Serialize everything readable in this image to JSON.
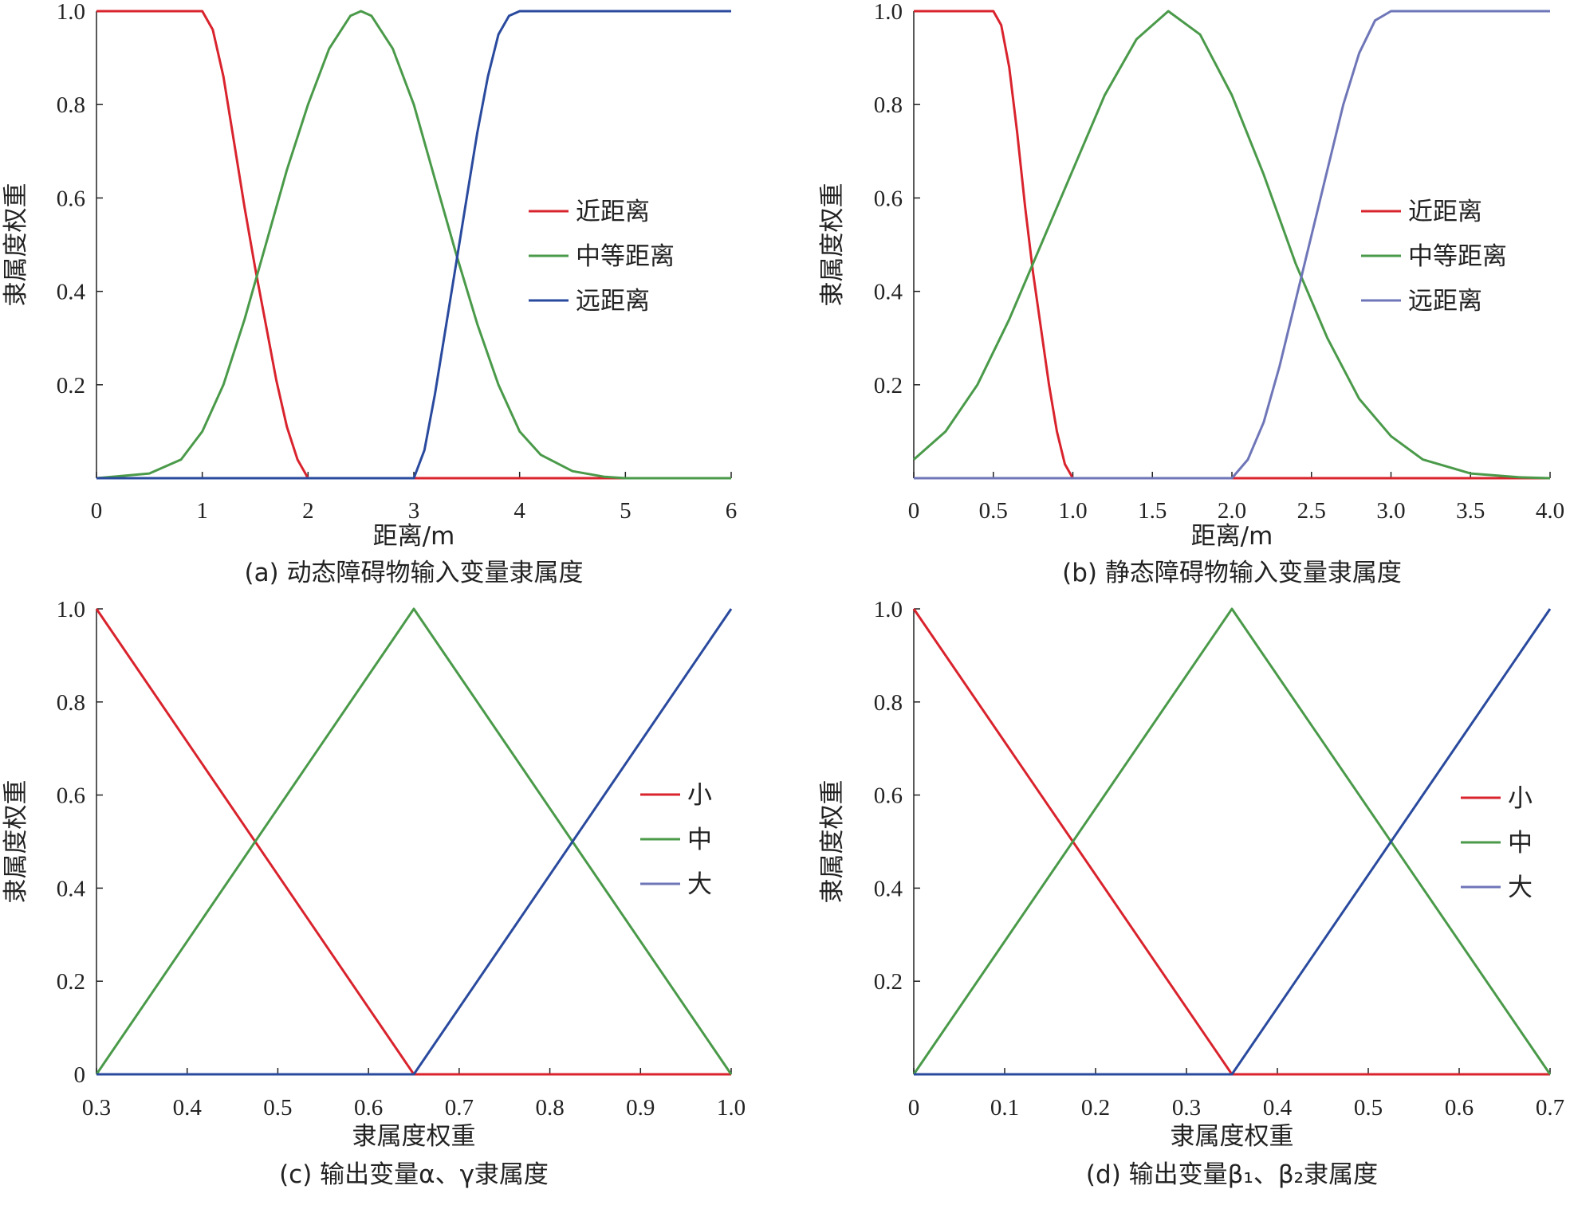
{
  "chart_data": [
    {
      "type": "line",
      "id": "a",
      "caption": "(a) 动态障碍物输入变量隶属度",
      "xlabel": "距离/m",
      "ylabel": "隶属度权重",
      "xlim": [
        0,
        6
      ],
      "ylim": [
        0,
        1
      ],
      "x_ticks": [
        "0",
        "1",
        "2",
        "3",
        "4",
        "5",
        "6"
      ],
      "x_tick_values": [
        0,
        1,
        2,
        3,
        4,
        5,
        6
      ],
      "y_ticks": [
        "0.2",
        "0.4",
        "0.6",
        "0.8",
        "1.0"
      ],
      "y_tick_values": [
        0.2,
        0.4,
        0.6,
        0.8,
        1.0
      ],
      "legend_position": "right",
      "series": [
        {
          "name": "近距离",
          "color": "#d9232d",
          "points": [
            [
              0,
              1
            ],
            [
              1.0,
              1
            ],
            [
              1.1,
              0.96
            ],
            [
              1.2,
              0.86
            ],
            [
              1.3,
              0.72
            ],
            [
              1.4,
              0.58
            ],
            [
              1.5,
              0.45
            ],
            [
              1.6,
              0.33
            ],
            [
              1.7,
              0.21
            ],
            [
              1.8,
              0.11
            ],
            [
              1.9,
              0.04
            ],
            [
              2.0,
              0
            ],
            [
              6,
              0
            ]
          ]
        },
        {
          "name": "中等距离",
          "color": "#4a9a4a",
          "points": [
            [
              0,
              0
            ],
            [
              0.5,
              0.01
            ],
            [
              0.8,
              0.04
            ],
            [
              1.0,
              0.1
            ],
            [
              1.2,
              0.2
            ],
            [
              1.4,
              0.34
            ],
            [
              1.6,
              0.5
            ],
            [
              1.8,
              0.66
            ],
            [
              2.0,
              0.8
            ],
            [
              2.2,
              0.92
            ],
            [
              2.4,
              0.99
            ],
            [
              2.5,
              1.0
            ],
            [
              2.6,
              0.99
            ],
            [
              2.8,
              0.92
            ],
            [
              3.0,
              0.8
            ],
            [
              3.2,
              0.64
            ],
            [
              3.4,
              0.48
            ],
            [
              3.6,
              0.33
            ],
            [
              3.8,
              0.2
            ],
            [
              4.0,
              0.1
            ],
            [
              4.2,
              0.05
            ],
            [
              4.5,
              0.015
            ],
            [
              4.8,
              0.003
            ],
            [
              5.0,
              0
            ],
            [
              6,
              0
            ]
          ]
        },
        {
          "name": "远距离",
          "color": "#2a4a9e",
          "points": [
            [
              0,
              0
            ],
            [
              3.0,
              0
            ],
            [
              3.1,
              0.06
            ],
            [
              3.2,
              0.18
            ],
            [
              3.3,
              0.32
            ],
            [
              3.4,
              0.46
            ],
            [
              3.5,
              0.6
            ],
            [
              3.6,
              0.74
            ],
            [
              3.7,
              0.86
            ],
            [
              3.8,
              0.95
            ],
            [
              3.9,
              0.99
            ],
            [
              4.0,
              1
            ],
            [
              6,
              1
            ]
          ]
        }
      ]
    },
    {
      "type": "line",
      "id": "b",
      "caption": "(b) 静态障碍物输入变量隶属度",
      "xlabel": "距离/m",
      "ylabel": "隶属度权重",
      "xlim": [
        0,
        4
      ],
      "ylim": [
        0,
        1
      ],
      "x_ticks": [
        "0",
        "0.5",
        "1.0",
        "1.5",
        "2.0",
        "2.5",
        "3.0",
        "3.5",
        "4.0"
      ],
      "x_tick_values": [
        0,
        0.5,
        1.0,
        1.5,
        2.0,
        2.5,
        3.0,
        3.5,
        4.0
      ],
      "y_ticks": [
        "0.2",
        "0.4",
        "0.6",
        "0.8",
        "1.0"
      ],
      "y_tick_values": [
        0.2,
        0.4,
        0.6,
        0.8,
        1.0
      ],
      "legend_position": "right",
      "series": [
        {
          "name": "近距离",
          "color": "#d9232d",
          "points": [
            [
              0,
              1
            ],
            [
              0.5,
              1
            ],
            [
              0.55,
              0.97
            ],
            [
              0.6,
              0.88
            ],
            [
              0.65,
              0.74
            ],
            [
              0.7,
              0.58
            ],
            [
              0.75,
              0.44
            ],
            [
              0.8,
              0.32
            ],
            [
              0.85,
              0.2
            ],
            [
              0.9,
              0.1
            ],
            [
              0.95,
              0.03
            ],
            [
              1.0,
              0
            ],
            [
              4,
              0
            ]
          ]
        },
        {
          "name": "中等距离",
          "color": "#4a9a4a",
          "points": [
            [
              0,
              0.04
            ],
            [
              0.2,
              0.1
            ],
            [
              0.4,
              0.2
            ],
            [
              0.6,
              0.34
            ],
            [
              0.8,
              0.5
            ],
            [
              1.0,
              0.66
            ],
            [
              1.2,
              0.82
            ],
            [
              1.4,
              0.94
            ],
            [
              1.6,
              1.0
            ],
            [
              1.8,
              0.95
            ],
            [
              2.0,
              0.82
            ],
            [
              2.2,
              0.65
            ],
            [
              2.4,
              0.46
            ],
            [
              2.6,
              0.3
            ],
            [
              2.8,
              0.17
            ],
            [
              3.0,
              0.09
            ],
            [
              3.2,
              0.04
            ],
            [
              3.5,
              0.01
            ],
            [
              3.8,
              0.002
            ],
            [
              4.0,
              0
            ]
          ]
        },
        {
          "name": "远距离",
          "color": "#6f76b8",
          "points": [
            [
              0,
              0
            ],
            [
              2.0,
              0
            ],
            [
              2.1,
              0.04
            ],
            [
              2.2,
              0.12
            ],
            [
              2.3,
              0.24
            ],
            [
              2.4,
              0.38
            ],
            [
              2.5,
              0.52
            ],
            [
              2.6,
              0.66
            ],
            [
              2.7,
              0.8
            ],
            [
              2.8,
              0.91
            ],
            [
              2.9,
              0.98
            ],
            [
              3.0,
              1
            ],
            [
              4,
              1
            ]
          ]
        }
      ]
    },
    {
      "type": "line",
      "id": "c",
      "caption": "(c) 输出变量α、γ隶属度",
      "xlabel": "隶属度权重",
      "ylabel": "隶属度权重",
      "xlim": [
        0.3,
        1.0
      ],
      "ylim": [
        0,
        1
      ],
      "x_ticks": [
        "0.3",
        "0.4",
        "0.5",
        "0.6",
        "0.7",
        "0.8",
        "0.9",
        "1.0"
      ],
      "x_tick_values": [
        0.3,
        0.4,
        0.5,
        0.6,
        0.7,
        0.8,
        0.9,
        1.0
      ],
      "y_ticks": [
        "0",
        "0.2",
        "0.4",
        "0.6",
        "0.8",
        "1.0"
      ],
      "y_tick_values": [
        0,
        0.2,
        0.4,
        0.6,
        0.8,
        1.0
      ],
      "legend_position": "right",
      "series": [
        {
          "name": "小",
          "color": "#d9232d",
          "points": [
            [
              0.3,
              1
            ],
            [
              0.65,
              0
            ],
            [
              1.0,
              0
            ]
          ]
        },
        {
          "name": "中",
          "color": "#4a9a4a",
          "points": [
            [
              0.3,
              0
            ],
            [
              0.65,
              1
            ],
            [
              1.0,
              0
            ]
          ]
        },
        {
          "name": "大",
          "color": "#2a4a9e",
          "legend_color": "#6f76b8",
          "points": [
            [
              0.3,
              0
            ],
            [
              0.65,
              0
            ],
            [
              1.0,
              1
            ]
          ]
        }
      ]
    },
    {
      "type": "line",
      "id": "d",
      "caption": "(d) 输出变量β₁、β₂隶属度",
      "xlabel": "隶属度权重",
      "ylabel": "隶属度权重",
      "xlim": [
        0,
        0.7
      ],
      "ylim": [
        0,
        1
      ],
      "x_ticks": [
        "0",
        "0.1",
        "0.2",
        "0.3",
        "0.4",
        "0.5",
        "0.6",
        "0.7"
      ],
      "x_tick_values": [
        0,
        0.1,
        0.2,
        0.3,
        0.4,
        0.5,
        0.6,
        0.7
      ],
      "y_ticks": [
        "0.2",
        "0.4",
        "0.6",
        "0.8",
        "1.0"
      ],
      "y_tick_values": [
        0.2,
        0.4,
        0.6,
        0.8,
        1.0
      ],
      "legend_position": "right",
      "series": [
        {
          "name": "小",
          "color": "#d9232d",
          "points": [
            [
              0,
              1
            ],
            [
              0.35,
              0
            ],
            [
              0.7,
              0
            ]
          ]
        },
        {
          "name": "中",
          "color": "#4a9a4a",
          "points": [
            [
              0,
              0
            ],
            [
              0.35,
              1
            ],
            [
              0.7,
              0
            ]
          ]
        },
        {
          "name": "大",
          "color": "#2a4a9e",
          "legend_color": "#6f76b8",
          "points": [
            [
              0,
              0
            ],
            [
              0.35,
              0
            ],
            [
              0.7,
              1
            ]
          ]
        }
      ]
    }
  ]
}
